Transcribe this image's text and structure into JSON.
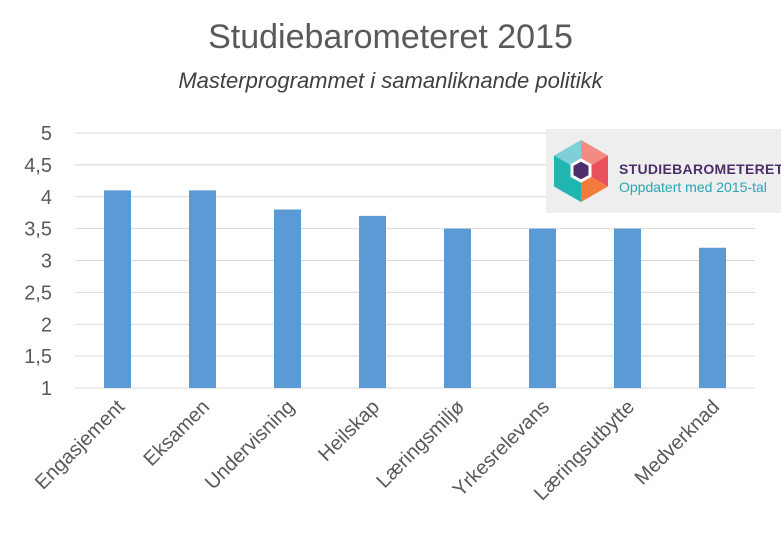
{
  "chart_data": {
    "type": "bar",
    "title": "Studiebarometeret 2015",
    "subtitle": "Masterprogrammet i samanliknande politikk",
    "categories": [
      "Engasjement",
      "Eksamen",
      "Undervisning",
      "Heilskap",
      "Læringsmiljø",
      "Yrkesrelevans",
      "Læringsutbytte",
      "Medverknad"
    ],
    "values": [
      4.1,
      4.1,
      3.8,
      3.7,
      3.5,
      3.5,
      3.5,
      3.2
    ],
    "ylim": [
      1,
      5
    ],
    "yticks": [
      "1",
      "1,5",
      "2",
      "2,5",
      "3",
      "3,5",
      "4",
      "4,5",
      "5"
    ],
    "grid": true,
    "bar_color": "#5b9bd5"
  },
  "logo": {
    "name": "STUDIEBAROMETERET",
    "tagline": "Oppdatert med 2015-tal",
    "colors": [
      "#f28b82",
      "#e8505b",
      "#f47b3d",
      "#1fb5b0",
      "#7ecfd6",
      "#4b2f6b"
    ]
  }
}
